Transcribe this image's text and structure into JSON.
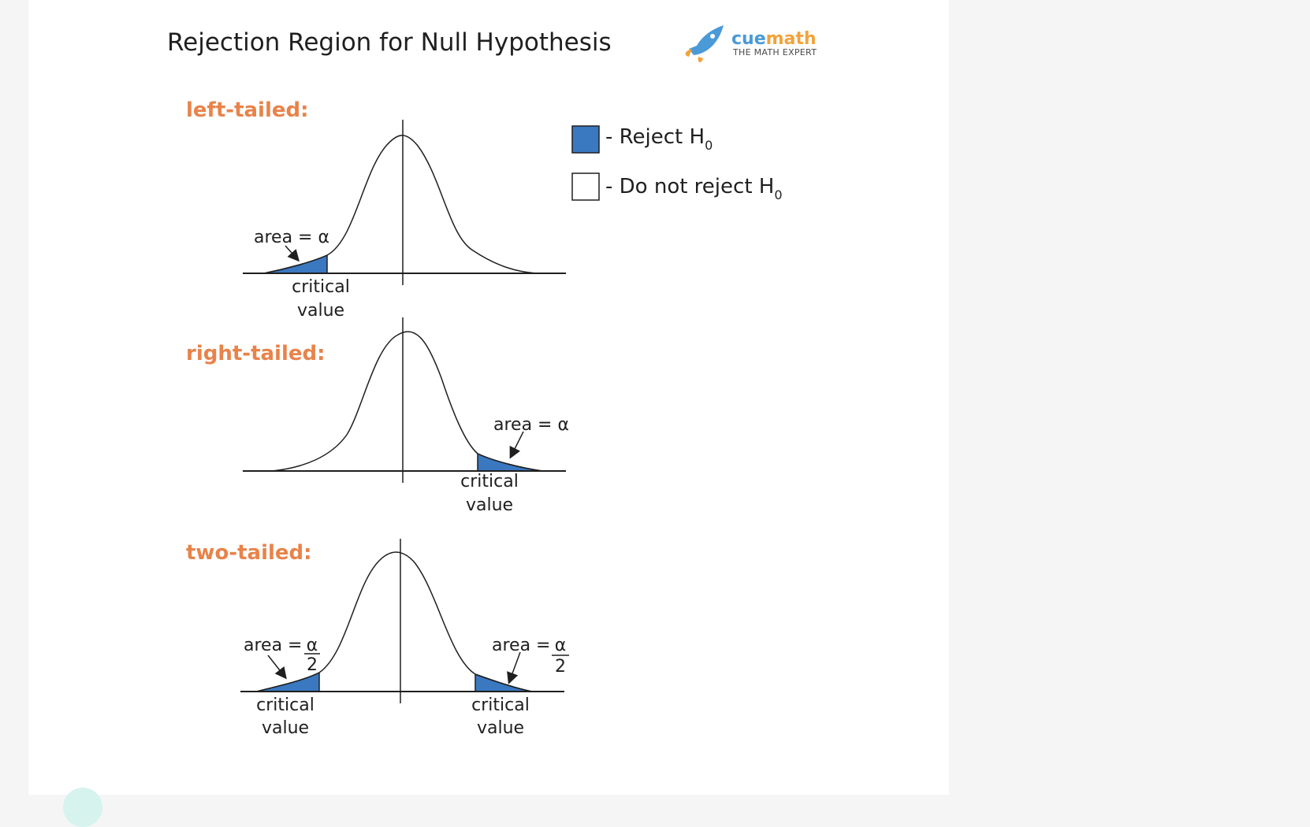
{
  "header": {
    "title": "Rejection Region for Null Hypothesis",
    "logo": {
      "name_part1": "cue",
      "name_part2": "math",
      "tagline": "THE MATH EXPERT",
      "icon": "rocket-icon"
    }
  },
  "legend": {
    "reject_label": "- Reject H",
    "reject_sub": "0",
    "reject_color": "#3a78c0",
    "not_reject_label": "- Do not reject H",
    "not_reject_sub": "0"
  },
  "panels": {
    "left": {
      "heading": "left-tailed:",
      "area_label": "area = α",
      "critical_line1": "critical",
      "critical_line2": "value"
    },
    "right": {
      "heading": "right-tailed:",
      "area_label": "area = α",
      "critical_line1": "critical",
      "critical_line2": "value"
    },
    "two": {
      "heading": "two-tailed:",
      "area_prefix": "area =",
      "alpha": "α",
      "denominator": "2",
      "critical_line1": "critical",
      "critical_line2": "value"
    }
  },
  "colors": {
    "accent_heading": "#e8834a",
    "shade": "#3a78c0"
  }
}
